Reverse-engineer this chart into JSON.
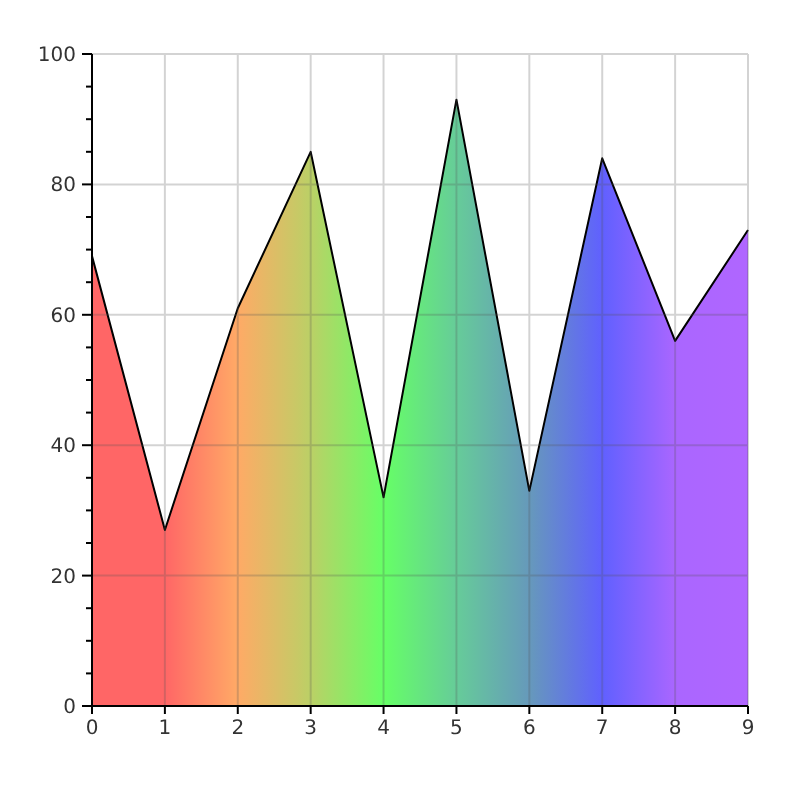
{
  "chart_data": {
    "type": "area",
    "x": [
      0,
      1,
      2,
      3,
      4,
      5,
      6,
      7,
      8,
      9
    ],
    "series": [
      {
        "values": [
          69,
          27,
          61,
          85,
          32,
          93,
          33,
          84,
          56,
          73
        ],
        "colors": [
          "#ff6666",
          "#ff6666",
          "#ffaa66",
          "#bbd066",
          "#66ff66",
          "#66cc99",
          "#6699bb",
          "#6060ff",
          "#aa66ff",
          "#b066ff"
        ]
      }
    ],
    "xlim": [
      0,
      9
    ],
    "xticks": [
      0,
      1,
      2,
      3,
      4,
      5,
      6,
      7,
      8,
      9
    ],
    "ylim": [
      0,
      100
    ],
    "yticks": [
      0,
      {
        "value": 5,
        "label": null
      },
      {
        "value": 10,
        "label": null
      },
      {
        "value": 15,
        "label": null
      },
      20,
      {
        "value": 25,
        "label": null
      },
      {
        "value": 30,
        "label": null
      },
      {
        "value": 35,
        "label": null
      },
      40,
      {
        "value": 45,
        "label": null
      },
      {
        "value": 50,
        "label": null
      },
      {
        "value": 55,
        "label": null
      },
      60,
      {
        "value": 65,
        "label": null
      },
      {
        "value": 70,
        "label": null
      },
      {
        "value": 75,
        "label": null
      },
      80,
      {
        "value": 85,
        "label": null
      },
      {
        "value": 90,
        "label": null
      },
      {
        "value": 95,
        "label": null
      },
      100
    ],
    "grid": true
  }
}
